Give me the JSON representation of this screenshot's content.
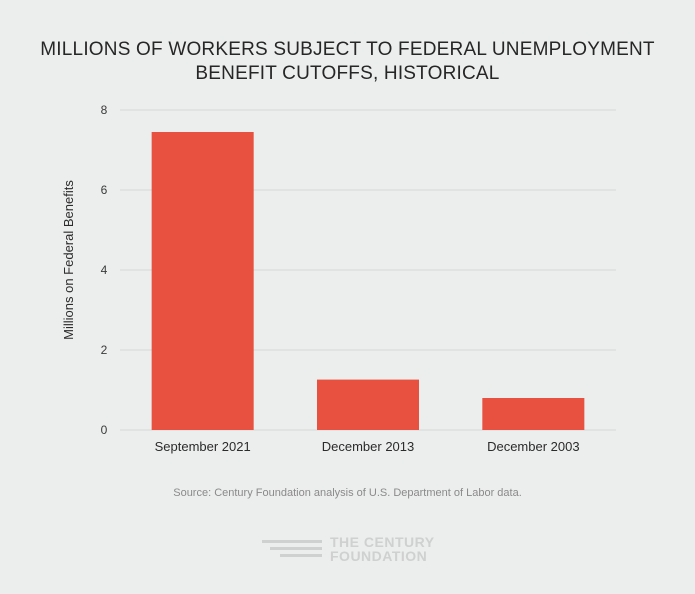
{
  "chart_data": {
    "type": "bar",
    "title_lines": [
      "MILLIONS OF WORKERS SUBJECT TO FEDERAL UNEMPLOYMENT",
      "BENEFIT CUTOFFS, HISTORICAL"
    ],
    "categories": [
      "September 2021",
      "December 2013",
      "December 2003"
    ],
    "values": [
      7.45,
      1.26,
      0.8
    ],
    "xlabel": "",
    "ylabel": "Millions on Federal Benefits",
    "ylim": [
      0,
      8
    ],
    "yticks": [
      0,
      2,
      4,
      6,
      8
    ],
    "grid": true,
    "bar_color": "#e8503f",
    "grid_color": "#d6d7d7"
  },
  "source": "Source: Century Foundation analysis of U.S. Department of Labor data.",
  "logo": {
    "line1": "THE CENTURY",
    "line2": "FOUNDATION",
    "color": "#cfd0d0"
  }
}
